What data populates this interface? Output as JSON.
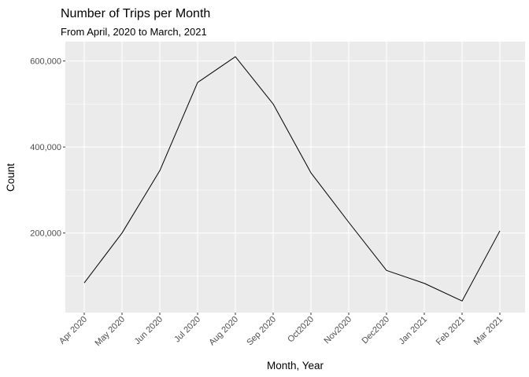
{
  "chart_data": {
    "type": "line",
    "title": "Number of Trips per Month",
    "subtitle": "From April, 2020 to March, 2021",
    "xlabel": "Month, Year",
    "ylabel": "Count",
    "categories": [
      "Apr 2020",
      "May 2020",
      "Jun 2020",
      "Jul 2020",
      "Aug 2020",
      "Sep 2020",
      "Oct2020",
      "Nov2020",
      "Dec2020",
      "Jan 2021",
      "Feb 2021",
      "Mar 2021"
    ],
    "values": [
      84000,
      200000,
      345000,
      550000,
      610000,
      500000,
      340000,
      225000,
      113000,
      83000,
      42000,
      205000
    ],
    "y_ticks": [
      200000,
      400000,
      600000
    ],
    "y_tick_labels": [
      "200,000",
      "400,000",
      "600,000"
    ],
    "ylim": [
      15000,
      645000
    ],
    "line_color": "#000000",
    "panel_background": "#ebebeb",
    "grid_color": "#ffffff",
    "grid": true,
    "legend": false
  }
}
